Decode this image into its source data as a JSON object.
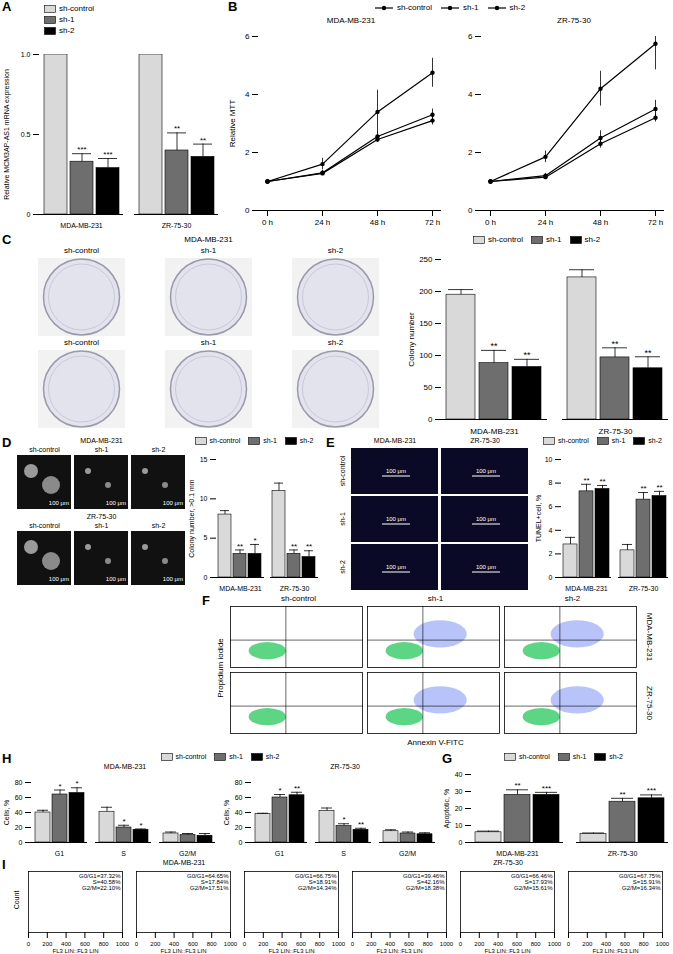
{
  "chart_data": [
    {
      "panel": "A",
      "type": "bar",
      "categories": [
        "MDA-MB-231",
        "ZR-75-30"
      ],
      "y_label": "Relative MCM3AP-AS1 mRNA expression",
      "ylim": [
        0,
        1
      ],
      "yticks": [
        0,
        0.5,
        {
          "value": 1,
          "label": "1.0"
        }
      ],
      "legend": "top-left",
      "series": [
        {
          "name": "sh-control",
          "color": "#d9d9d9",
          "values": [
            1,
            1
          ]
        },
        {
          "name": "sh-1",
          "color": "#6e6e6e",
          "values": [
            0.33,
            0.4
          ],
          "errors": [
            0.05,
            0.11
          ],
          "annotations": [
            "***",
            "**"
          ]
        },
        {
          "name": "sh-2",
          "color": "#000000",
          "values": [
            0.29,
            0.36
          ],
          "errors": [
            0.06,
            0.08
          ],
          "annotations": [
            "***",
            "**"
          ]
        }
      ]
    },
    {
      "panel": "B",
      "type": "line",
      "title": "MDA-MB-231",
      "categories": [
        "0 h",
        "24 h",
        "48 h",
        "72 h"
      ],
      "y_label": "Relative MTT",
      "ylim": [
        0,
        6
      ],
      "yticks": [
        0,
        2,
        4,
        6
      ],
      "legend": "top",
      "series": [
        {
          "name": "sh-control",
          "color": "#000000",
          "marker": "circle",
          "values": [
            1,
            1.6,
            3.4,
            4.75
          ],
          "errors": [
            0.02,
            0.2,
            0.75,
            0.5
          ]
        },
        {
          "name": "sh-1",
          "color": "#000000",
          "marker": "circle",
          "values": [
            1,
            1.3,
            2.55,
            3.3
          ],
          "errors": [
            0.02,
            0.08,
            0.15,
            0.2
          ]
        },
        {
          "name": "sh-2",
          "color": "#000000",
          "marker": "circle",
          "values": [
            1,
            1.28,
            2.45,
            3.1
          ],
          "errors": [
            0.02,
            0.06,
            0.1,
            0.15
          ]
        }
      ]
    },
    {
      "type": "line",
      "title": "ZR-75-30",
      "categories": [
        "0 h",
        "24 h",
        "48 h",
        "72 h"
      ],
      "ylim": [
        0,
        6
      ],
      "yticks": [
        0,
        2,
        4,
        6
      ],
      "series": [
        {
          "name": "sh-control",
          "color": "#000000",
          "marker": "circle",
          "values": [
            1,
            1.85,
            4.2,
            5.75
          ],
          "errors": [
            0.02,
            0.2,
            0.6,
            0.9
          ]
        },
        {
          "name": "sh-1",
          "color": "#000000",
          "marker": "circle",
          "values": [
            1,
            1.2,
            2.5,
            3.5
          ],
          "errors": [
            0.02,
            0.08,
            0.25,
            0.3
          ]
        },
        {
          "name": "sh-2",
          "color": "#000000",
          "marker": "circle",
          "values": [
            1,
            1.15,
            2.3,
            3.2
          ],
          "errors": [
            0.02,
            0.06,
            0.15,
            0.15
          ]
        }
      ]
    },
    {
      "panel": "C",
      "type": "bar",
      "categories": [
        "MDA-MB-231",
        "ZR-75-30"
      ],
      "y_label": "Colony number",
      "ylim": [
        0,
        250
      ],
      "yticks": [
        0,
        50,
        100,
        150,
        200,
        250
      ],
      "legend": "top",
      "series": [
        {
          "name": "sh-control",
          "color": "#d9d9d9",
          "values": [
            195,
            222
          ],
          "errors": [
            8,
            12
          ]
        },
        {
          "name": "sh-1",
          "color": "#6e6e6e",
          "values": [
            88,
            97
          ],
          "errors": [
            20,
            15
          ],
          "annotations": [
            "**",
            "**"
          ]
        },
        {
          "name": "sh-2",
          "color": "#000000",
          "values": [
            82,
            80
          ],
          "errors": [
            12,
            18
          ],
          "annotations": [
            "**",
            "**"
          ]
        }
      ]
    },
    {
      "panel": "D",
      "type": "bar",
      "categories": [
        "MDA-MB-231",
        "ZR-75-30"
      ],
      "y_label": "Colony number, >0.1 mm",
      "ylim": [
        0,
        15
      ],
      "yticks": [
        0,
        5,
        10,
        15
      ],
      "legend": "top",
      "series": [
        {
          "name": "sh-control",
          "color": "#d9d9d9",
          "values": [
            8,
            11
          ],
          "errors": [
            0.5,
            1
          ]
        },
        {
          "name": "sh-1",
          "color": "#6e6e6e",
          "values": [
            3,
            3
          ],
          "errors": [
            0.5,
            0.5
          ],
          "annotations": [
            "**",
            "**"
          ]
        },
        {
          "name": "sh-2",
          "color": "#000000",
          "values": [
            3,
            2.6
          ],
          "errors": [
            1.2,
            0.8
          ],
          "annotations": [
            "*",
            "**"
          ]
        }
      ]
    },
    {
      "panel": "E",
      "type": "bar",
      "categories": [
        "MDA-MB-231",
        "ZR-75-30"
      ],
      "y_label": "TUNEL+cell, %",
      "ylim": [
        0,
        10
      ],
      "yticks": [
        0,
        2,
        4,
        6,
        8,
        10
      ],
      "legend": "top",
      "series": [
        {
          "name": "sh-control",
          "color": "#d9d9d9",
          "values": [
            2.8,
            2.3
          ],
          "errors": [
            0.6,
            0.5
          ]
        },
        {
          "name": "sh-1",
          "color": "#6e6e6e",
          "values": [
            7.3,
            6.6
          ],
          "errors": [
            0.6,
            0.6
          ],
          "annotations": [
            "**",
            "**"
          ]
        },
        {
          "name": "sh-2",
          "color": "#000000",
          "values": [
            7.5,
            6.9
          ],
          "errors": [
            0.3,
            0.4
          ],
          "annotations": [
            "**",
            "**"
          ]
        }
      ]
    },
    {
      "panel": "G",
      "type": "bar",
      "categories": [
        "MDA-MB-231",
        "ZR-75-30"
      ],
      "y_label": "Apoptotic, %",
      "ylim": [
        0,
        40
      ],
      "yticks": [
        0,
        10,
        20,
        30,
        40
      ],
      "legend": "top",
      "series": [
        {
          "name": "sh-control",
          "color": "#d9d9d9",
          "values": [
            6,
            5
          ],
          "errors": [
            0.7,
            0.6
          ]
        },
        {
          "name": "sh-1",
          "color": "#6e6e6e",
          "values": [
            28,
            24
          ],
          "errors": [
            3,
            2
          ],
          "annotations": [
            "**",
            "**"
          ]
        },
        {
          "name": "sh-2",
          "color": "#000000",
          "values": [
            28,
            26
          ],
          "errors": [
            1.5,
            2
          ],
          "annotations": [
            "***",
            "***"
          ]
        }
      ]
    },
    {
      "panel": "H",
      "type": "bar",
      "title": "MDA-MB-231",
      "categories": [
        "G1",
        "S",
        "G2/M"
      ],
      "y_label": "Cells, %",
      "ylim": [
        0,
        80
      ],
      "yticks": [
        0,
        20,
        40,
        60,
        80
      ],
      "legend": "top",
      "series": [
        {
          "name": "sh-control",
          "color": "#d9d9d9",
          "values": [
            40,
            41,
            12
          ],
          "errors": [
            3,
            6,
            2
          ]
        },
        {
          "name": "sh-1",
          "color": "#6e6e6e",
          "values": [
            64,
            20,
            10
          ],
          "errors": [
            6,
            3,
            2
          ],
          "annotations": [
            "*",
            "*",
            null
          ]
        },
        {
          "name": "sh-2",
          "color": "#000000",
          "values": [
            66,
            17,
            9
          ],
          "errors": [
            7,
            1,
            3
          ],
          "annotations": [
            "*",
            "*",
            null
          ]
        }
      ]
    },
    {
      "type": "bar",
      "title": "ZR-75-30",
      "categories": [
        "G1",
        "S",
        "G2/M"
      ],
      "y_label": "Cells, %",
      "ylim": [
        0,
        80
      ],
      "yticks": [
        0,
        20,
        40,
        60,
        80
      ],
      "series": [
        {
          "name": "sh-control",
          "color": "#d9d9d9",
          "values": [
            38,
            42,
            15
          ],
          "errors": [
            1,
            4,
            2
          ]
        },
        {
          "name": "sh-1",
          "color": "#6e6e6e",
          "values": [
            60,
            22,
            12
          ],
          "errors": [
            4,
            3,
            2
          ],
          "annotations": [
            "*",
            "*",
            null
          ]
        },
        {
          "name": "sh-2",
          "color": "#000000",
          "values": [
            63,
            17,
            11
          ],
          "errors": [
            4,
            2,
            2
          ],
          "annotations": [
            "**",
            "**",
            null
          ]
        }
      ]
    }
  ],
  "image_panels": {
    "C": {
      "title": "MDA-MB-231",
      "rows": [
        [
          "sh-control",
          "sh-1",
          "sh-2"
        ],
        [
          "sh-control",
          "sh-1",
          "sh-2"
        ]
      ]
    },
    "D": {
      "groups": [
        {
          "title": "MDA-MB-231",
          "columns": [
            "sh-control",
            "sh-1",
            "sh-2"
          ]
        },
        {
          "title": "ZR-75-30",
          "columns": [
            "sh-control",
            "sh-1",
            "sh-2"
          ]
        }
      ],
      "scale_bar": "100 μm"
    },
    "E": {
      "columns": [
        "MDA-MB-231",
        "ZR-75-30"
      ],
      "rows": [
        "sh-control",
        "sh-1",
        "sh-2"
      ],
      "scale_bar": "100 μm"
    },
    "F": {
      "panel": "F",
      "columns": [
        "sh-control",
        "sh-1",
        "sh-2"
      ],
      "rows": [
        "MDA-MB-231",
        "ZR-75-30"
      ],
      "x_label": "Annexin V-FITC",
      "y_label": "Propidium iodide"
    },
    "I": {
      "panel": "I",
      "y_label": "Count",
      "x_label": "FL3 LIN::FL3 LIN",
      "xlim": [
        0,
        1000
      ],
      "xticks": [
        0,
        200,
        400,
        600,
        800,
        1000
      ],
      "groups": [
        {
          "title": "MDA-MB-231",
          "plots": [
            [
              "G0/G1=37.32%",
              "S=40.58%",
              "G2/M=22.10%"
            ],
            [
              "G0/G1=64.65%",
              "S=17.84%",
              "G2/M=17.51%"
            ],
            [
              "G0/G1=66.75%",
              "S=18.91%",
              "G2/M=14.34%"
            ]
          ]
        },
        {
          "title": "ZR-75-30",
          "plots": [
            [
              "G0/G1=39.46%",
              "S=42.16%",
              "G2/M=18.38%"
            ],
            [
              "G0/G1=66.46%",
              "S=17.93%",
              "G2/M=15.61%"
            ],
            [
              "G0/G1=67.75%",
              "S=15.91%",
              "G2/M=16.34%"
            ]
          ]
        }
      ]
    }
  }
}
